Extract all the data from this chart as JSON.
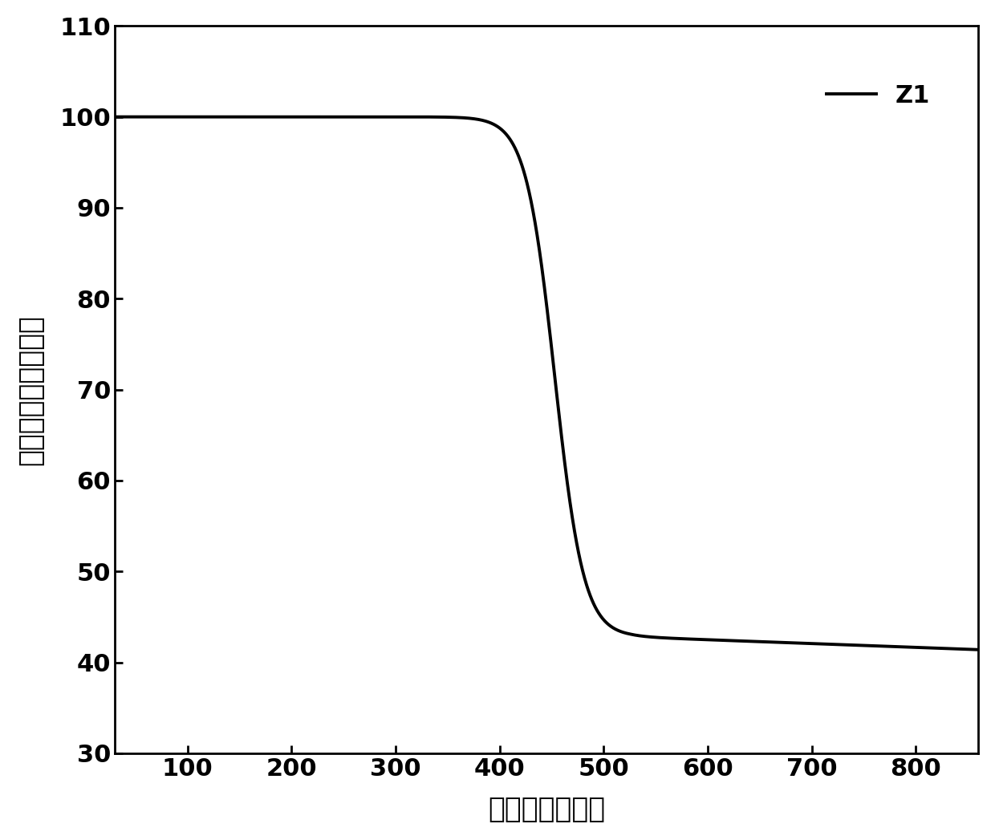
{
  "xlabel": "温度（摄氏度）",
  "ylabel": "失重比例（百分数）",
  "xlim": [
    30,
    860
  ],
  "ylim": [
    30,
    110
  ],
  "xticks": [
    100,
    200,
    300,
    400,
    500,
    600,
    700,
    800
  ],
  "yticks": [
    30,
    40,
    50,
    60,
    70,
    80,
    90,
    100,
    110
  ],
  "line_color": "#000000",
  "line_width": 2.8,
  "legend_label": "Z1",
  "background_color": "#ffffff",
  "curve_inflection_x": 453,
  "curve_steepness": 0.072,
  "curve_y_high": 100.0,
  "curve_y_low": 42.8,
  "curve_slow_decline_start": 525,
  "curve_slow_decline_rate": 0.0042,
  "curve_x_start": 30,
  "curve_x_end": 860,
  "font_size_ticks": 22,
  "font_size_labels": 25,
  "font_size_legend": 22
}
